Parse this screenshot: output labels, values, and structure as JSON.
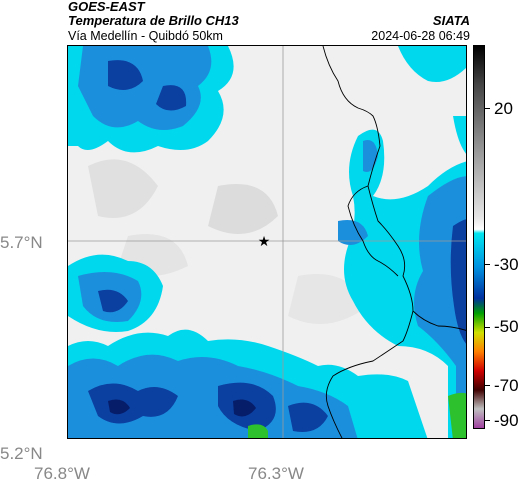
{
  "header": {
    "satellite": "GOES-EAST",
    "product": "Temperatura de Brillo CH13",
    "route": "Vía Medellín - Quibdó 50km",
    "agency": "SIATA",
    "timestamp": "2024-06-28 06:49"
  },
  "map": {
    "lat_labels": [
      "5.7°N",
      "5.2°N"
    ],
    "lon_labels": [
      "76.8°W",
      "76.3°W"
    ],
    "marker_icon": "star-icon",
    "colors": {
      "cloud_light": "#f0f0f0",
      "cloud_mid": "#d8d8d8",
      "cyan": "#00d8ee",
      "blue": "#1c8fdc",
      "deep_blue": "#0b3fa0",
      "navy": "#061d6a",
      "green": "#2dc22d",
      "border": "#000000"
    }
  },
  "colorbar": {
    "labels": [
      "20",
      "-30",
      "-50",
      "-70",
      "-90"
    ],
    "gradient": [
      "#000000",
      "#444444",
      "#9a9a9a",
      "#e6e6e6",
      "#ffffff",
      "#00e6f0",
      "#0090e0",
      "#0030a0",
      "#00a000",
      "#d0e000",
      "#ff8000",
      "#d00000",
      "#400000",
      "#c0c0c0",
      "#a040a0"
    ]
  }
}
